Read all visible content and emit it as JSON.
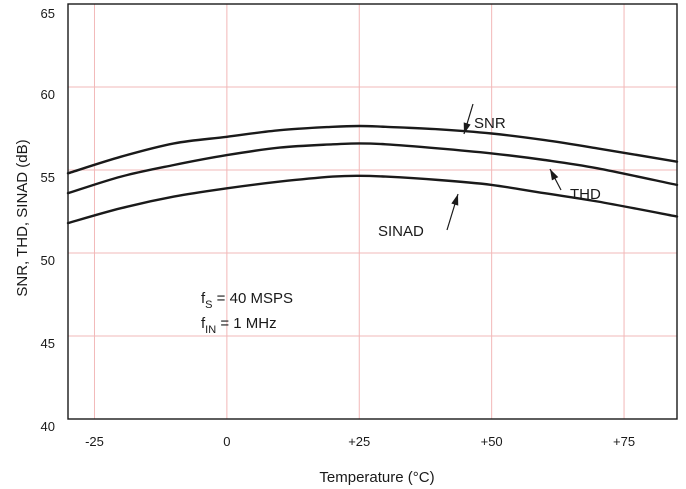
{
  "chart_data": {
    "type": "line",
    "title": "",
    "xlabel": "Temperature (°C)",
    "ylabel": "SNR, THD, SINAD (dB)",
    "xlim": [
      -30,
      85
    ],
    "ylim": [
      40,
      65
    ],
    "x_ticks": [
      {
        "value": -25,
        "label": "-25"
      },
      {
        "value": 0,
        "label": "0"
      },
      {
        "value": 25,
        "label": "+25"
      },
      {
        "value": 50,
        "label": "+50"
      },
      {
        "value": 75,
        "label": "+75"
      }
    ],
    "y_ticks": [
      {
        "value": 40,
        "label": "40"
      },
      {
        "value": 45,
        "label": "45"
      },
      {
        "value": 50,
        "label": "50"
      },
      {
        "value": 55,
        "label": "55"
      },
      {
        "value": 60,
        "label": "60"
      },
      {
        "value": 65,
        "label": "65"
      }
    ],
    "grid": true,
    "legend": "none",
    "series": [
      {
        "name": "SNR",
        "x": [
          -30,
          -20,
          -10,
          0,
          10,
          20,
          25,
          30,
          40,
          50,
          60,
          70,
          85
        ],
        "y": [
          54.8,
          55.8,
          56.6,
          57.0,
          57.4,
          57.6,
          57.65,
          57.6,
          57.45,
          57.2,
          56.8,
          56.3,
          55.5
        ]
      },
      {
        "name": "THD",
        "x": [
          -30,
          -20,
          -10,
          0,
          10,
          20,
          25,
          30,
          40,
          50,
          60,
          70,
          85
        ],
        "y": [
          53.6,
          54.6,
          55.3,
          55.9,
          56.35,
          56.55,
          56.6,
          56.55,
          56.3,
          56.0,
          55.6,
          55.1,
          54.1
        ]
      },
      {
        "name": "SINAD",
        "x": [
          -30,
          -20,
          -10,
          0,
          10,
          20,
          25,
          30,
          40,
          50,
          60,
          70,
          85
        ],
        "y": [
          51.8,
          52.7,
          53.4,
          53.9,
          54.3,
          54.6,
          54.65,
          54.6,
          54.4,
          54.1,
          53.6,
          53.1,
          52.2
        ]
      }
    ],
    "annotations": [
      {
        "for": "SNR",
        "text": "SNR"
      },
      {
        "for": "THD",
        "text": "THD"
      },
      {
        "for": "SINAD",
        "text": "SINAD"
      }
    ],
    "conditions": [
      {
        "base": "f",
        "sub": "S",
        "rest": " = 40 MSPS"
      },
      {
        "base": "f",
        "sub": "IN",
        "rest": " = 1 MHz"
      }
    ]
  }
}
